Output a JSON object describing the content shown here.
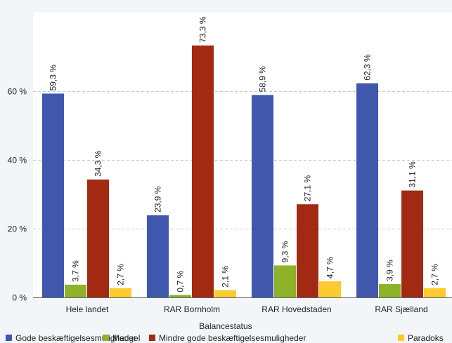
{
  "chart_data": {
    "type": "bar",
    "categories": [
      "Hele landet",
      "RAR Bornholm",
      "RAR Hovedstaden",
      "RAR Sjælland"
    ],
    "series": [
      {
        "name": "Gode beskæftigelsesmuligheder",
        "color": "#3f58ae",
        "values": [
          59.3,
          23.9,
          58.9,
          62.3
        ],
        "labels": [
          "59,3 %",
          "23,9 %",
          "58,9 %",
          "62,3 %"
        ]
      },
      {
        "name": "Mangel",
        "color": "#8db32a",
        "values": [
          3.7,
          0.7,
          9.3,
          3.9
        ],
        "labels": [
          "3,7 %",
          "0,7 %",
          "9,3 %",
          "3,9 %"
        ]
      },
      {
        "name": "Mindre gode beskæftigelsesmuligheder",
        "color": "#a22a12",
        "values": [
          34.3,
          73.3,
          27.1,
          31.1
        ],
        "labels": [
          "34,3 %",
          "73,3 %",
          "27,1 %",
          "31,1 %"
        ]
      },
      {
        "name": "Paradoks",
        "color": "#fbcb2f",
        "values": [
          2.7,
          2.1,
          4.7,
          2.7
        ],
        "labels": [
          "2,7 %",
          "2,1 %",
          "4,7 %",
          "2,7 %"
        ]
      }
    ],
    "yticks": [
      0,
      20,
      40,
      60
    ],
    "ytick_labels": [
      "0 %",
      "20 %",
      "40 %",
      "60 %"
    ],
    "ylim": [
      0,
      80
    ],
    "xlabel": "Balancestatus",
    "ylabel": "",
    "grid": true,
    "legend_position": "bottom"
  }
}
